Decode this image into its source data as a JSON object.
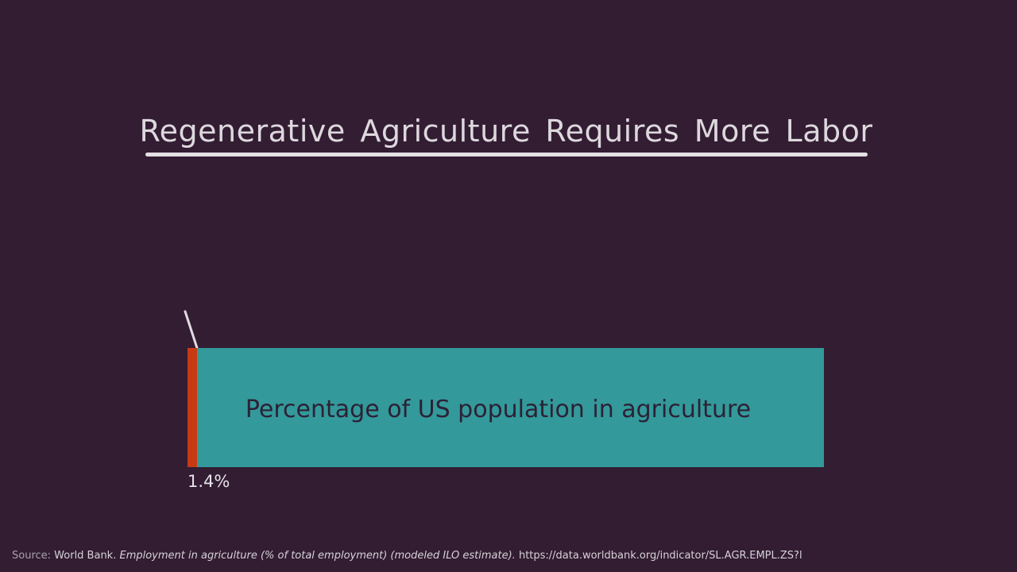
{
  "title": "Regenerative Agriculture Requires More Labor",
  "chart_data": {
    "type": "bar",
    "orientation": "horizontal-stacked",
    "xlim": [
      0,
      100
    ],
    "segments": [
      {
        "value": 1.4,
        "value_label": "1.4%",
        "color": "#c83a14"
      },
      {
        "value": 98.6,
        "color": "#33999a"
      }
    ],
    "bar_label": "Percentage of US population in agriculture",
    "grid": false,
    "legend": "none"
  },
  "source": {
    "prefix": "Source:",
    "org": "World Bank.",
    "title": "Employment in agriculture (% of total employment) (modeled ILO estimate).",
    "url": "https://data.worldbank.org/indicator/SL.AGR.EMPL.ZS?l"
  }
}
